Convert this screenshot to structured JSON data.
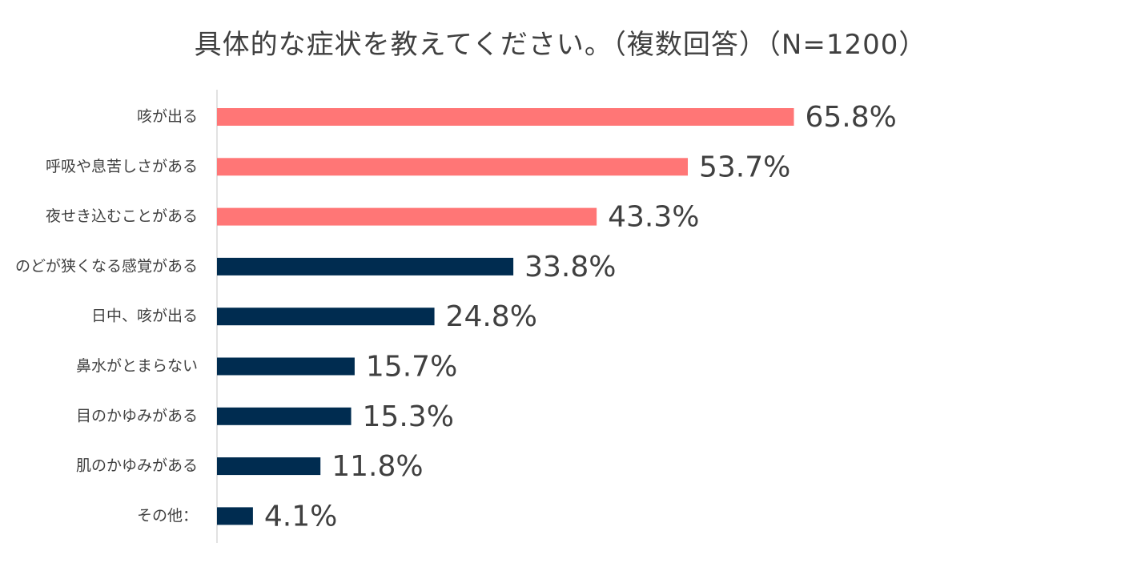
{
  "chart_data": {
    "type": "bar",
    "orientation": "horizontal",
    "title": "具体的な症状を教えてください。（複数回答）（N=1200）",
    "categories": [
      "咳が出る",
      "呼吸や息苦しさがある",
      "夜せき込むことがある",
      "のどが狭くなる感覚がある",
      "日中、咳が出る",
      "鼻水がとまらない",
      "目のかゆみがある",
      "肌のかゆみがある",
      "その他："
    ],
    "values": [
      65.8,
      53.7,
      43.3,
      33.8,
      24.8,
      15.7,
      15.3,
      11.8,
      4.1
    ],
    "value_labels": [
      "65.8%",
      "53.7%",
      "43.3%",
      "33.8%",
      "24.8%",
      "15.7%",
      "15.3%",
      "11.8%",
      "4.1%"
    ],
    "bar_colors": [
      "#ff7676",
      "#ff7676",
      "#ff7676",
      "#002c50",
      "#002c50",
      "#002c50",
      "#002c50",
      "#002c50",
      "#002c50"
    ],
    "axis_color": "#d9d9d9",
    "grid": false,
    "legend": "none"
  }
}
